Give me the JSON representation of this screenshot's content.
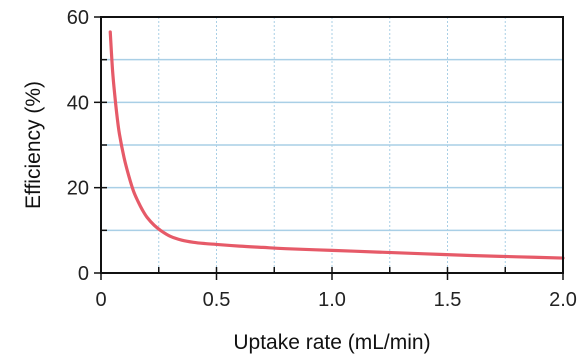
{
  "chart_data": {
    "type": "line",
    "title": "",
    "xlabel": "Uptake rate (mL/min)",
    "ylabel": "Efficiency (%)",
    "xlim": [
      0,
      2.0
    ],
    "ylim": [
      0,
      60
    ],
    "x_ticks": [
      {
        "value": 0,
        "label": "0"
      },
      {
        "value": 0.5,
        "label": "0.5"
      },
      {
        "value": 1.0,
        "label": "1.0"
      },
      {
        "value": 1.5,
        "label": "1.5"
      },
      {
        "value": 2.0,
        "label": "2.0"
      }
    ],
    "y_ticks": [
      {
        "value": 0,
        "label": "0"
      },
      {
        "value": 20,
        "label": "20"
      },
      {
        "value": 40,
        "label": "40"
      },
      {
        "value": 60,
        "label": "60"
      }
    ],
    "grid": true,
    "grid_color": "#a9cfe6",
    "line_color": "#e65a68",
    "series": [
      {
        "x": [
          0.04,
          0.05,
          0.06,
          0.07,
          0.08,
          0.1,
          0.12,
          0.14,
          0.16,
          0.18,
          0.2,
          0.23,
          0.26,
          0.3,
          0.35,
          0.4,
          0.45,
          0.5,
          0.6,
          0.7,
          0.8,
          1.0,
          1.2,
          1.4,
          1.6,
          1.8,
          2.0
        ],
        "y": [
          56.5,
          47.5,
          41.5,
          36.5,
          32.5,
          27,
          22.8,
          19.3,
          16.8,
          14.7,
          13,
          11.2,
          9.9,
          8.6,
          7.7,
          7.2,
          6.9,
          6.7,
          6.3,
          6.0,
          5.7,
          5.3,
          4.9,
          4.5,
          4.1,
          3.8,
          3.5
        ]
      }
    ]
  }
}
